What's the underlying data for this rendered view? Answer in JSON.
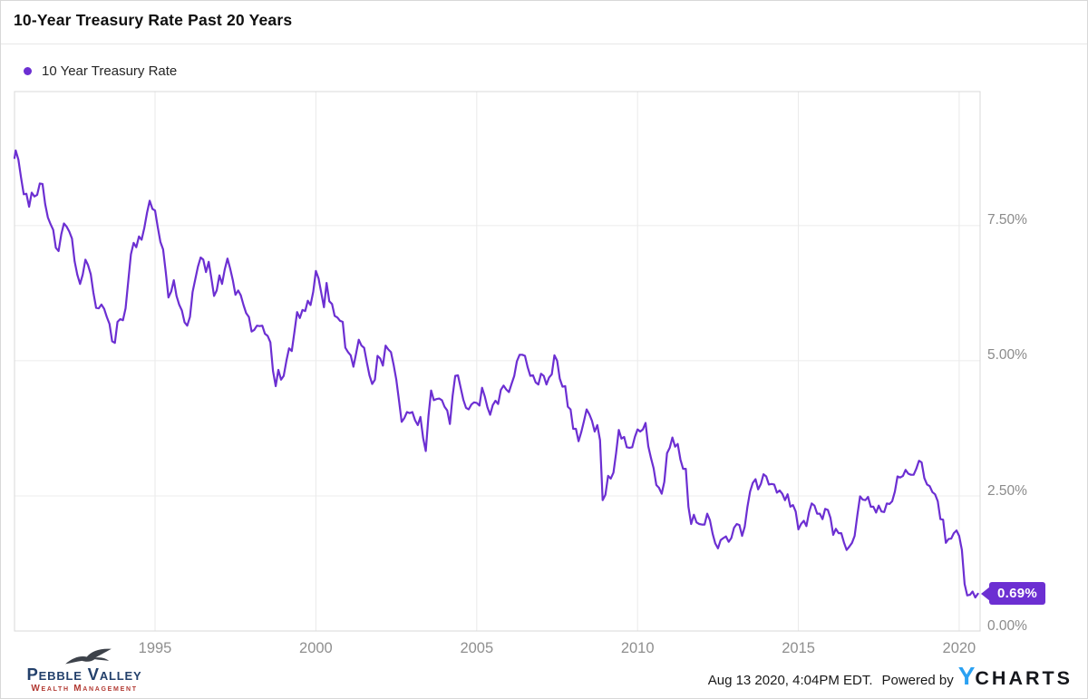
{
  "header": {
    "title": "10-Year Treasury Rate Past 20 Years"
  },
  "chart_data": {
    "type": "line",
    "title": "10-Year Treasury Rate Past 20 Years",
    "xlabel": "",
    "ylabel": "",
    "grid": true,
    "legend_position": "top-left",
    "x_tick_years": [
      1995,
      2000,
      2005,
      2010,
      2015,
      2020
    ],
    "x_tick_labels": [
      "1995",
      "2000",
      "2005",
      "2010",
      "2015",
      "2020"
    ],
    "y_ticks": [
      {
        "value": 7.5,
        "label": "7.50%"
      },
      {
        "value": 5.0,
        "label": "5.00%"
      },
      {
        "value": 2.5,
        "label": "2.50%"
      },
      {
        "value": 0.0,
        "label": "0.00%"
      }
    ],
    "ylim": [
      0,
      9.98
    ],
    "x_range_years": [
      1990.63,
      2020.65
    ],
    "annotations": [
      {
        "label": "0.69%",
        "value": 0.69,
        "position": "end-of-line"
      }
    ],
    "series": [
      {
        "name": "10 Year Treasury Rate",
        "color": "#6c2fd2",
        "unit": "percent",
        "x_start_year": 1990.5833,
        "x_step_years": 0.0833333,
        "values": [
          8.75,
          8.89,
          8.72,
          8.39,
          8.08,
          8.09,
          7.85,
          8.11,
          8.04,
          8.07,
          8.28,
          8.27,
          7.9,
          7.65,
          7.53,
          7.42,
          7.09,
          7.03,
          7.34,
          7.54,
          7.48,
          7.39,
          7.26,
          6.84,
          6.59,
          6.42,
          6.59,
          6.87,
          6.77,
          6.6,
          6.26,
          5.98,
          5.97,
          6.04,
          5.96,
          5.81,
          5.68,
          5.36,
          5.33,
          5.72,
          5.77,
          5.75,
          5.97,
          6.48,
          6.97,
          7.18,
          7.1,
          7.3,
          7.24,
          7.46,
          7.74,
          7.96,
          7.81,
          7.78,
          7.47,
          7.2,
          7.06,
          6.63,
          6.17,
          6.28,
          6.49,
          6.2,
          6.04,
          5.93,
          5.71,
          5.65,
          5.81,
          6.27,
          6.51,
          6.74,
          6.91,
          6.87,
          6.64,
          6.83,
          6.53,
          6.2,
          6.3,
          6.58,
          6.42,
          6.69,
          6.89,
          6.71,
          6.49,
          6.22,
          6.3,
          6.21,
          6.03,
          5.88,
          5.81,
          5.54,
          5.57,
          5.65,
          5.64,
          5.65,
          5.5,
          5.46,
          5.34,
          4.81,
          4.53,
          4.83,
          4.65,
          4.72,
          5.0,
          5.23,
          5.18,
          5.54,
          5.9,
          5.79,
          5.94,
          5.92,
          6.11,
          6.03,
          6.28,
          6.66,
          6.52,
          6.26,
          5.99,
          6.44,
          6.1,
          6.05,
          5.83,
          5.8,
          5.74,
          5.72,
          5.24,
          5.16,
          5.1,
          4.89,
          5.14,
          5.39,
          5.28,
          5.24,
          4.97,
          4.73,
          4.57,
          4.65,
          5.09,
          5.04,
          4.91,
          5.28,
          5.21,
          5.16,
          4.93,
          4.65,
          4.26,
          3.87,
          3.94,
          4.05,
          4.03,
          4.05,
          3.9,
          3.81,
          3.96,
          3.57,
          3.33,
          3.98,
          4.45,
          4.27,
          4.29,
          4.3,
          4.27,
          4.15,
          4.08,
          3.83,
          4.35,
          4.72,
          4.73,
          4.5,
          4.28,
          4.13,
          4.1,
          4.19,
          4.23,
          4.22,
          4.17,
          4.5,
          4.34,
          4.14,
          4.0,
          4.18,
          4.26,
          4.2,
          4.46,
          4.54,
          4.47,
          4.42,
          4.57,
          4.72,
          4.99,
          5.11,
          5.11,
          5.09,
          4.88,
          4.72,
          4.73,
          4.6,
          4.56,
          4.76,
          4.72,
          4.56,
          4.69,
          4.75,
          5.1,
          5.0,
          4.67,
          4.52,
          4.53,
          4.15,
          4.1,
          3.74,
          3.74,
          3.51,
          3.68,
          3.88,
          4.1,
          4.01,
          3.89,
          3.69,
          3.81,
          3.53,
          2.42,
          2.52,
          2.87,
          2.82,
          2.93,
          3.29,
          3.72,
          3.56,
          3.59,
          3.4,
          3.39,
          3.4,
          3.59,
          3.73,
          3.69,
          3.73,
          3.85,
          3.42,
          3.2,
          3.01,
          2.7,
          2.65,
          2.54,
          2.76,
          3.29,
          3.39,
          3.58,
          3.41,
          3.46,
          3.17,
          3.0,
          3.0,
          2.3,
          1.98,
          2.15,
          2.01,
          1.98,
          1.97,
          1.97,
          2.17,
          2.05,
          1.8,
          1.62,
          1.53,
          1.68,
          1.72,
          1.75,
          1.65,
          1.72,
          1.91,
          1.98,
          1.96,
          1.76,
          1.93,
          2.3,
          2.58,
          2.74,
          2.81,
          2.62,
          2.72,
          2.9,
          2.86,
          2.71,
          2.72,
          2.71,
          2.56,
          2.6,
          2.54,
          2.42,
          2.53,
          2.3,
          2.33,
          2.21,
          1.88,
          1.98,
          2.04,
          1.94,
          2.2,
          2.36,
          2.32,
          2.17,
          2.17,
          2.07,
          2.26,
          2.24,
          2.09,
          1.78,
          1.89,
          1.81,
          1.81,
          1.64,
          1.5,
          1.56,
          1.63,
          1.76,
          2.14,
          2.49,
          2.43,
          2.42,
          2.48,
          2.3,
          2.3,
          2.19,
          2.32,
          2.21,
          2.2,
          2.36,
          2.35,
          2.4,
          2.58,
          2.86,
          2.84,
          2.87,
          2.98,
          2.91,
          2.89,
          2.89,
          3.0,
          3.15,
          3.12,
          2.83,
          2.71,
          2.68,
          2.57,
          2.53,
          2.4,
          2.07,
          2.06,
          1.63,
          1.7,
          1.71,
          1.81,
          1.86,
          1.76,
          1.5,
          0.87,
          0.66,
          0.67,
          0.73,
          0.62,
          0.69
        ]
      }
    ]
  },
  "footer": {
    "brand": {
      "name": "Pebble Valley",
      "subtitle": "Wealth Management"
    },
    "timestamp": "Aug 13 2020, 4:04PM EDT.",
    "powered_by": "Powered by",
    "ycharts": {
      "y": "Y",
      "charts": "CHARTS"
    }
  },
  "colors": {
    "series_purple": "#6c2fd2",
    "grid_vertical": "#e9e9e9",
    "grid_horizontal": "#ececec",
    "plot_border": "#d9d9d9",
    "tick_text": "#8b8b8b",
    "brand_navy": "#23406b",
    "brand_red": "#b23a33",
    "ycharts_blue": "#2aa1f2"
  }
}
